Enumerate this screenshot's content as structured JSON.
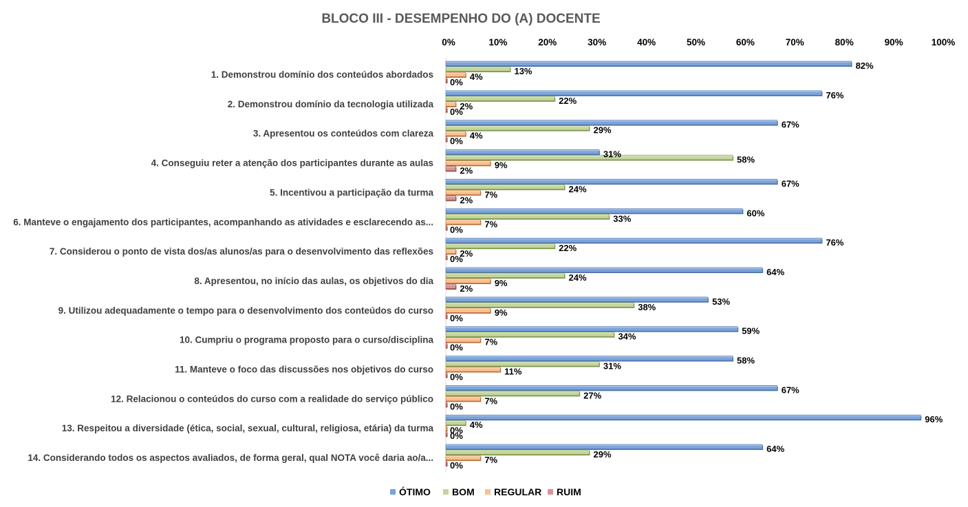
{
  "chart_data": {
    "type": "bar",
    "orientation": "horizontal",
    "title": "BLOCO III - DESEMPENHO DO (A) DOCENTE",
    "xlabel": "",
    "ylabel": "",
    "xlim": [
      0,
      100
    ],
    "x_ticks": [
      "0%",
      "10%",
      "20%",
      "30%",
      "40%",
      "50%",
      "60%",
      "70%",
      "80%",
      "90%",
      "100%"
    ],
    "x_axis_position": "top",
    "grid": false,
    "legend_position": "bottom",
    "value_suffix": "%",
    "categories": [
      "1. Demonstrou domínio dos conteúdos abordados",
      "2. Demonstrou domínio da tecnologia utilizada",
      "3. Apresentou os conteúdos com clareza",
      "4. Conseguiu reter a atenção dos participantes durante as aulas",
      "5. Incentivou a participação da turma",
      "6. Manteve o engajamento dos participantes, acompanhando as atividades e esclarecendo as...",
      "7. Considerou o ponto de vista dos/as alunos/as para o desenvolvimento das reflexões",
      "8. Apresentou, no início das aulas, os objetivos do dia",
      "9. Utilizou adequadamente o tempo para o desenvolvimento dos conteúdos do curso",
      "10. Cumpriu o programa proposto para o curso/disciplina",
      "11. Manteve o foco das discussões nos objetivos do curso",
      "12. Relacionou o conteúdos do curso com a realidade do serviço público",
      "13. Respeitou a diversidade (ética, social, sexual, cultural, religiosa, etária) da turma",
      "14. Considerando todos os aspectos avaliados, de forma geral, qual NOTA você daria ao/a..."
    ],
    "series": [
      {
        "name": "ÓTIMO",
        "color": "#7BA3DC",
        "edge": "#4F74A8",
        "values": [
          82,
          76,
          67,
          31,
          67,
          60,
          76,
          64,
          53,
          59,
          58,
          67,
          96,
          64
        ]
      },
      {
        "name": "BOM",
        "color": "#C3D69B",
        "edge": "#7E9651",
        "values": [
          13,
          22,
          29,
          58,
          24,
          33,
          22,
          24,
          38,
          34,
          31,
          27,
          4,
          29
        ]
      },
      {
        "name": "REGULAR",
        "color": "#FAC090",
        "edge": "#B7703E",
        "values": [
          4,
          2,
          4,
          9,
          7,
          7,
          2,
          9,
          9,
          7,
          11,
          7,
          0,
          7
        ]
      },
      {
        "name": "RUIM",
        "color": "#D99694",
        "edge": "#944B48",
        "values": [
          0,
          0,
          0,
          2,
          2,
          0,
          0,
          2,
          0,
          0,
          0,
          0,
          0,
          0
        ]
      }
    ]
  }
}
